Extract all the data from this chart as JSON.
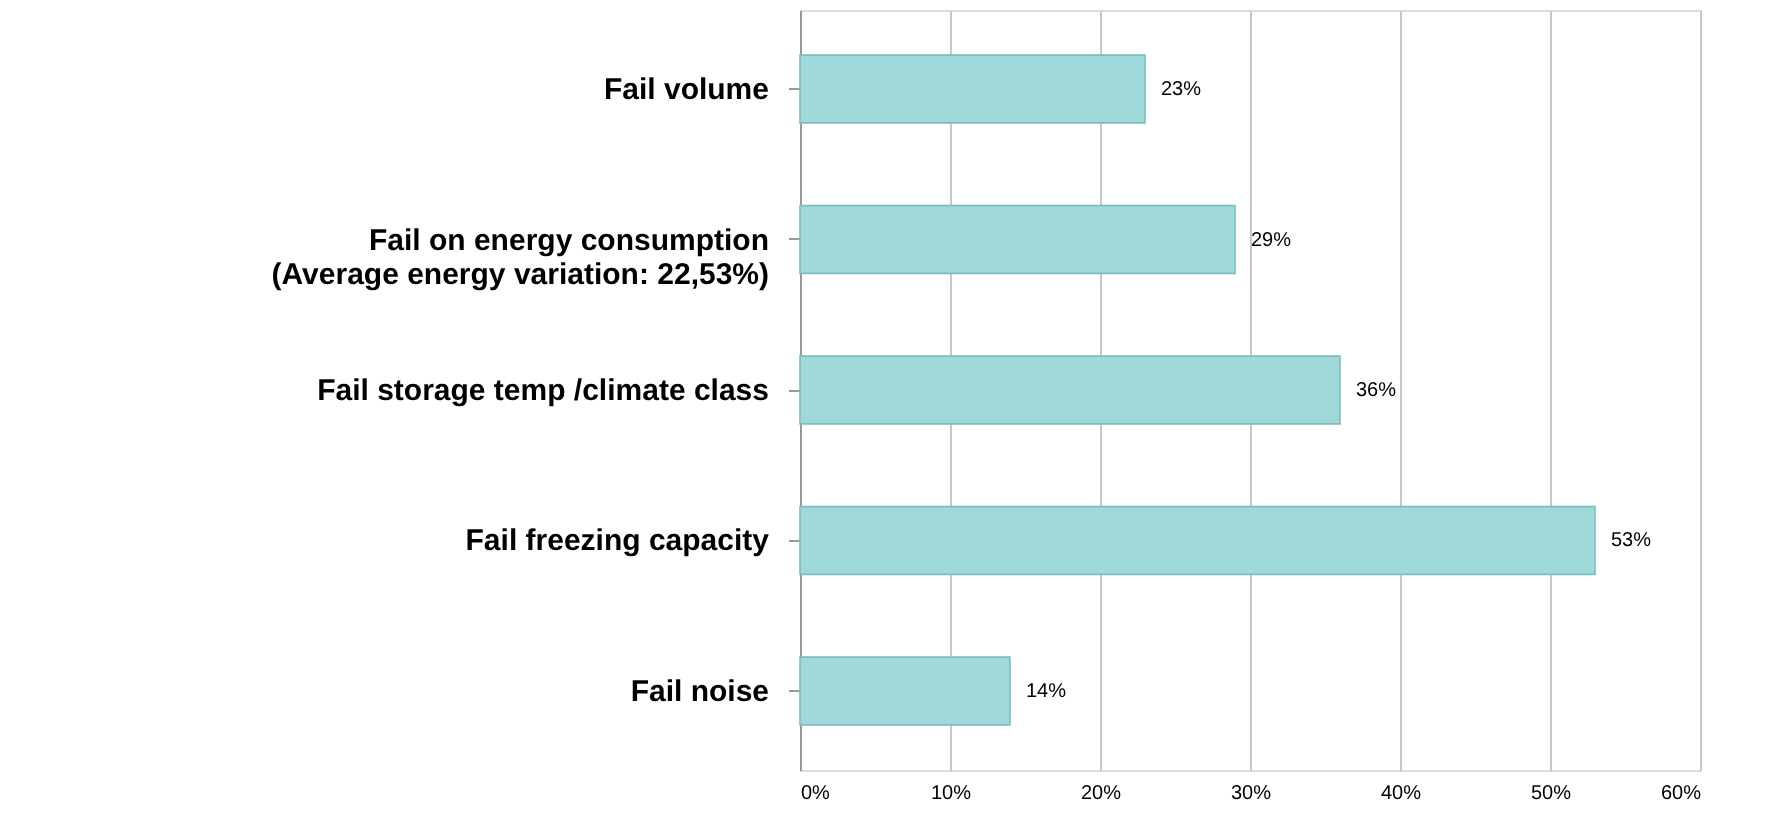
{
  "chart_data": {
    "type": "bar",
    "orientation": "horizontal",
    "categories": [
      "Fail volume",
      "Fail on energy consumption\n(Average energy variation: 22,53%)",
      "Fail storage temp /climate class",
      "Fail freezing capacity",
      "Fail noise"
    ],
    "values": [
      23,
      29,
      36,
      53,
      14
    ],
    "value_labels": [
      "23%",
      "29%",
      "36%",
      "53%",
      "14%"
    ],
    "color": "#9fd9d9",
    "xlim": [
      0,
      60
    ],
    "xticks": [
      {
        "value": 0,
        "label": "0%"
      },
      {
        "value": 10,
        "label": "10%"
      },
      {
        "value": 20,
        "label": "20%"
      },
      {
        "value": 30,
        "label": "30%"
      },
      {
        "value": 40,
        "label": "40%"
      },
      {
        "value": 50,
        "label": "50%"
      },
      {
        "value": 60,
        "label": "60%"
      }
    ],
    "grid": "x"
  }
}
